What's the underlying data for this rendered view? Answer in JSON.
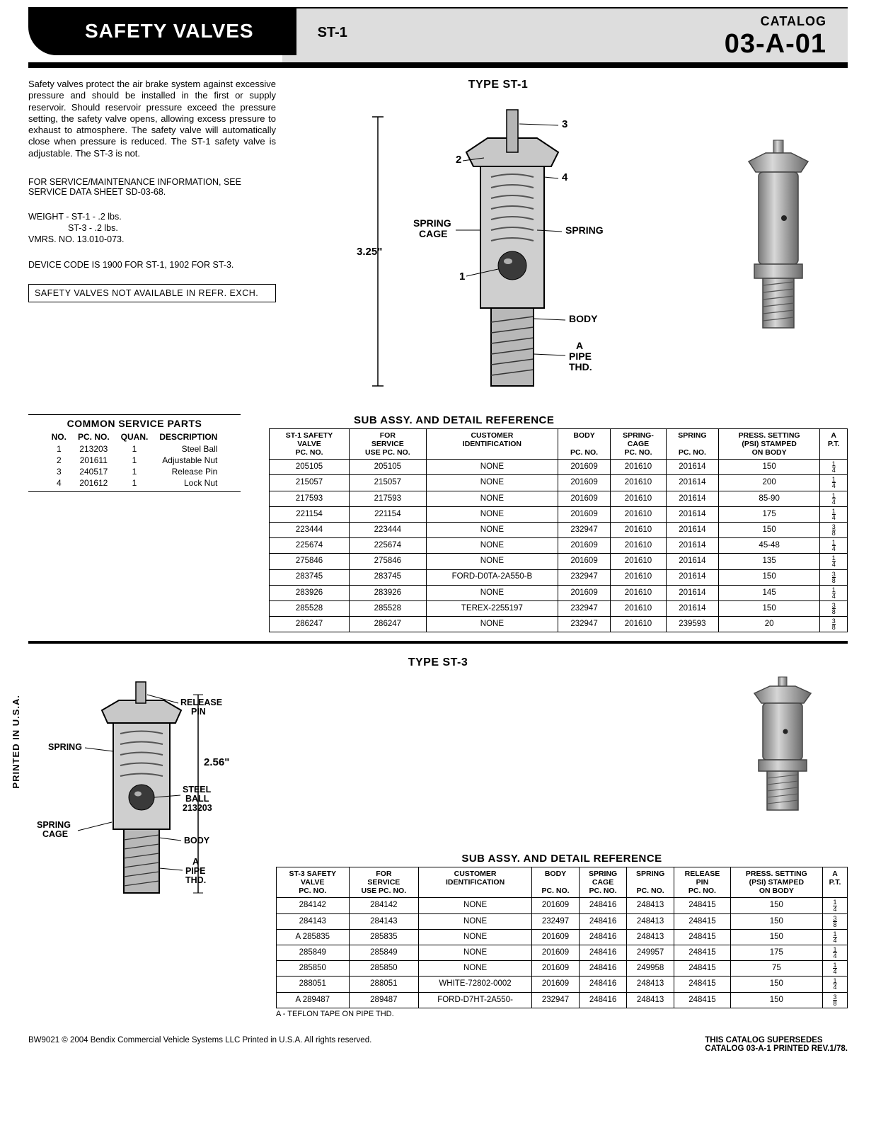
{
  "header": {
    "title": "SAFETY VALVES",
    "type_label": "ST-1",
    "catalog_label": "CATALOG",
    "catalog_number": "03-A-01"
  },
  "intro_text": "Safety valves protect the air brake system against excessive pressure and should be installed in the first or supply reservoir. Should reservoir pressure exceed the pressure setting, the safety valve opens, allowing excess pressure to exhaust to atmosphere. The safety valve will automatically close when pressure is reduced. The ST-1 safety valve is adjustable. The ST-3 is not.",
  "service_note": "FOR SERVICE/MAINTENANCE INFORMATION, SEE SERVICE DATA SHEET SD-03-68.",
  "weight": {
    "line1": "WEIGHT - ST-1 - .2 lbs.",
    "line2": "ST-3 - .2 lbs.",
    "vmrs": "VMRS. NO. 13.010-073."
  },
  "device_code": "DEVICE CODE IS 1900 FOR ST-1, 1902 FOR ST-3.",
  "refr_box": "SAFETY VALVES NOT AVAILABLE IN REFR. EXCH.",
  "st1_diagram": {
    "title": "TYPE ST-1",
    "height": "3.25\"",
    "labels": {
      "spring_cage": "SPRING\nCAGE",
      "spring": "SPRING",
      "body": "BODY",
      "pipe": "A\nPIPE\nTHD.",
      "n1": "1",
      "n2": "2",
      "n3": "3",
      "n4": "4"
    }
  },
  "common_parts": {
    "title": "COMMON SERVICE PARTS",
    "headers": [
      "NO.",
      "PC. NO.",
      "QUAN.",
      "DESCRIPTION"
    ],
    "rows": [
      [
        "1",
        "213203",
        "1",
        "Steel Ball"
      ],
      [
        "2",
        "201611",
        "1",
        "Adjustable Nut"
      ],
      [
        "3",
        "240517",
        "1",
        "Release Pin"
      ],
      [
        "4",
        "201612",
        "1",
        "Lock Nut"
      ]
    ]
  },
  "sub_assy_st1": {
    "title": "SUB ASSY. AND DETAIL REFERENCE",
    "headers": [
      "ST-1 SAFETY\nVALVE\nPC. NO.",
      "FOR\nSERVICE\nUSE PC. NO.",
      "CUSTOMER\nIDENTIFICATION",
      "BODY\n\nPC. NO.",
      "SPRING-\nCAGE\nPC. NO.",
      "SPRING\n\nPC. NO.",
      "PRESS. SETTING\n(PSI) STAMPED\nON BODY",
      "A\nP.T."
    ],
    "group1": [
      [
        "205105",
        "205105",
        "NONE",
        "201609",
        "201610",
        "201614",
        "150",
        "1/4"
      ],
      [
        "215057",
        "215057",
        "NONE",
        "201609",
        "201610",
        "201614",
        "200",
        "1/4"
      ],
      [
        "217593",
        "217593",
        "NONE",
        "201609",
        "201610",
        "201614",
        "85-90",
        "1/4"
      ],
      [
        "221154",
        "221154",
        "NONE",
        "201609",
        "201610",
        "201614",
        "175",
        "1/4"
      ],
      [
        "223444",
        "223444",
        "NONE",
        "232947",
        "201610",
        "201614",
        "150",
        "3/8"
      ],
      [
        "225674",
        "225674",
        "NONE",
        "201609",
        "201610",
        "201614",
        "45-48",
        "1/4"
      ]
    ],
    "group2": [
      [
        "275846",
        "275846",
        "NONE",
        "201609",
        "201610",
        "201614",
        "135",
        "1/4"
      ],
      [
        "283745",
        "283745",
        "FORD-D0TA-2A550-B",
        "232947",
        "201610",
        "201614",
        "150",
        "3/8"
      ],
      [
        "283926",
        "283926",
        "NONE",
        "201609",
        "201610",
        "201614",
        "145",
        "1/4"
      ],
      [
        "285528",
        "285528",
        "TEREX-2255197",
        "232947",
        "201610",
        "201614",
        "150",
        "3/8"
      ],
      [
        "286247",
        "286247",
        "NONE",
        "232947",
        "201610",
        "239593",
        "20",
        "3/8"
      ]
    ]
  },
  "st3_diagram": {
    "title": "TYPE ST-3",
    "height": "2.56\"",
    "vertical": "PRINTED IN U.S.A.",
    "labels": {
      "release_pin": "RELEASE\nPIN",
      "spring": "SPRING",
      "steel_ball": "STEEL\nBALL\n213203",
      "spring_cage": "SPRING\nCAGE",
      "body": "BODY",
      "pipe": "A\nPIPE\nTHD."
    }
  },
  "sub_assy_st3": {
    "title": "SUB ASSY. AND DETAIL REFERENCE",
    "headers": [
      "ST-3 SAFETY\nVALVE\nPC. NO.",
      "FOR\nSERVICE\nUSE PC. NO.",
      "CUSTOMER\nIDENTIFICATION",
      "BODY\n\nPC. NO.",
      "SPRING\nCAGE\nPC. NO.",
      "SPRING\n\nPC. NO.",
      "RELEASE\nPIN\nPC. NO.",
      "PRESS. SETTING\n(PSI) STAMPED\nON BODY",
      "A\nP.T."
    ],
    "group1": [
      [
        "284142",
        "284142",
        "NONE",
        "201609",
        "248416",
        "248413",
        "248415",
        "150",
        "1/4"
      ],
      [
        "284143",
        "284143",
        "NONE",
        "232497",
        "248416",
        "248413",
        "248415",
        "150",
        "3/8"
      ],
      [
        "A 285835",
        "285835",
        "NONE",
        "201609",
        "248416",
        "248413",
        "248415",
        "150",
        "1/4"
      ],
      [
        "285849",
        "285849",
        "NONE",
        "201609",
        "248416",
        "249957",
        "248415",
        "175",
        "1/4"
      ]
    ],
    "group2": [
      [
        "285850",
        "285850",
        "NONE",
        "201609",
        "248416",
        "249958",
        "248415",
        "75",
        "1/4"
      ],
      [
        "288051",
        "288051",
        "WHITE-72802-0002",
        "201609",
        "248416",
        "248413",
        "248415",
        "150",
        "1/4"
      ],
      [
        "A 289487",
        "289487",
        "FORD-D7HT-2A550-",
        "232947",
        "248416",
        "248413",
        "248415",
        "150",
        "3/8"
      ]
    ],
    "footnote": "A - TEFLON TAPE ON PIPE THD."
  },
  "footer": {
    "left": "BW9021   © 2004 Bendix Commercial Vehicle Systems LLC   Printed in U.S.A.   All rights reserved.",
    "right1": "THIS CATALOG SUPERSEDES",
    "right2": "CATALOG 03-A-1 PRINTED REV.1/78."
  },
  "colors": {
    "black": "#000000",
    "grey": "#d8d8d8",
    "metal_light": "#c8c8c8",
    "metal_mid": "#9a9a9a",
    "metal_dark": "#6b6b6b"
  }
}
